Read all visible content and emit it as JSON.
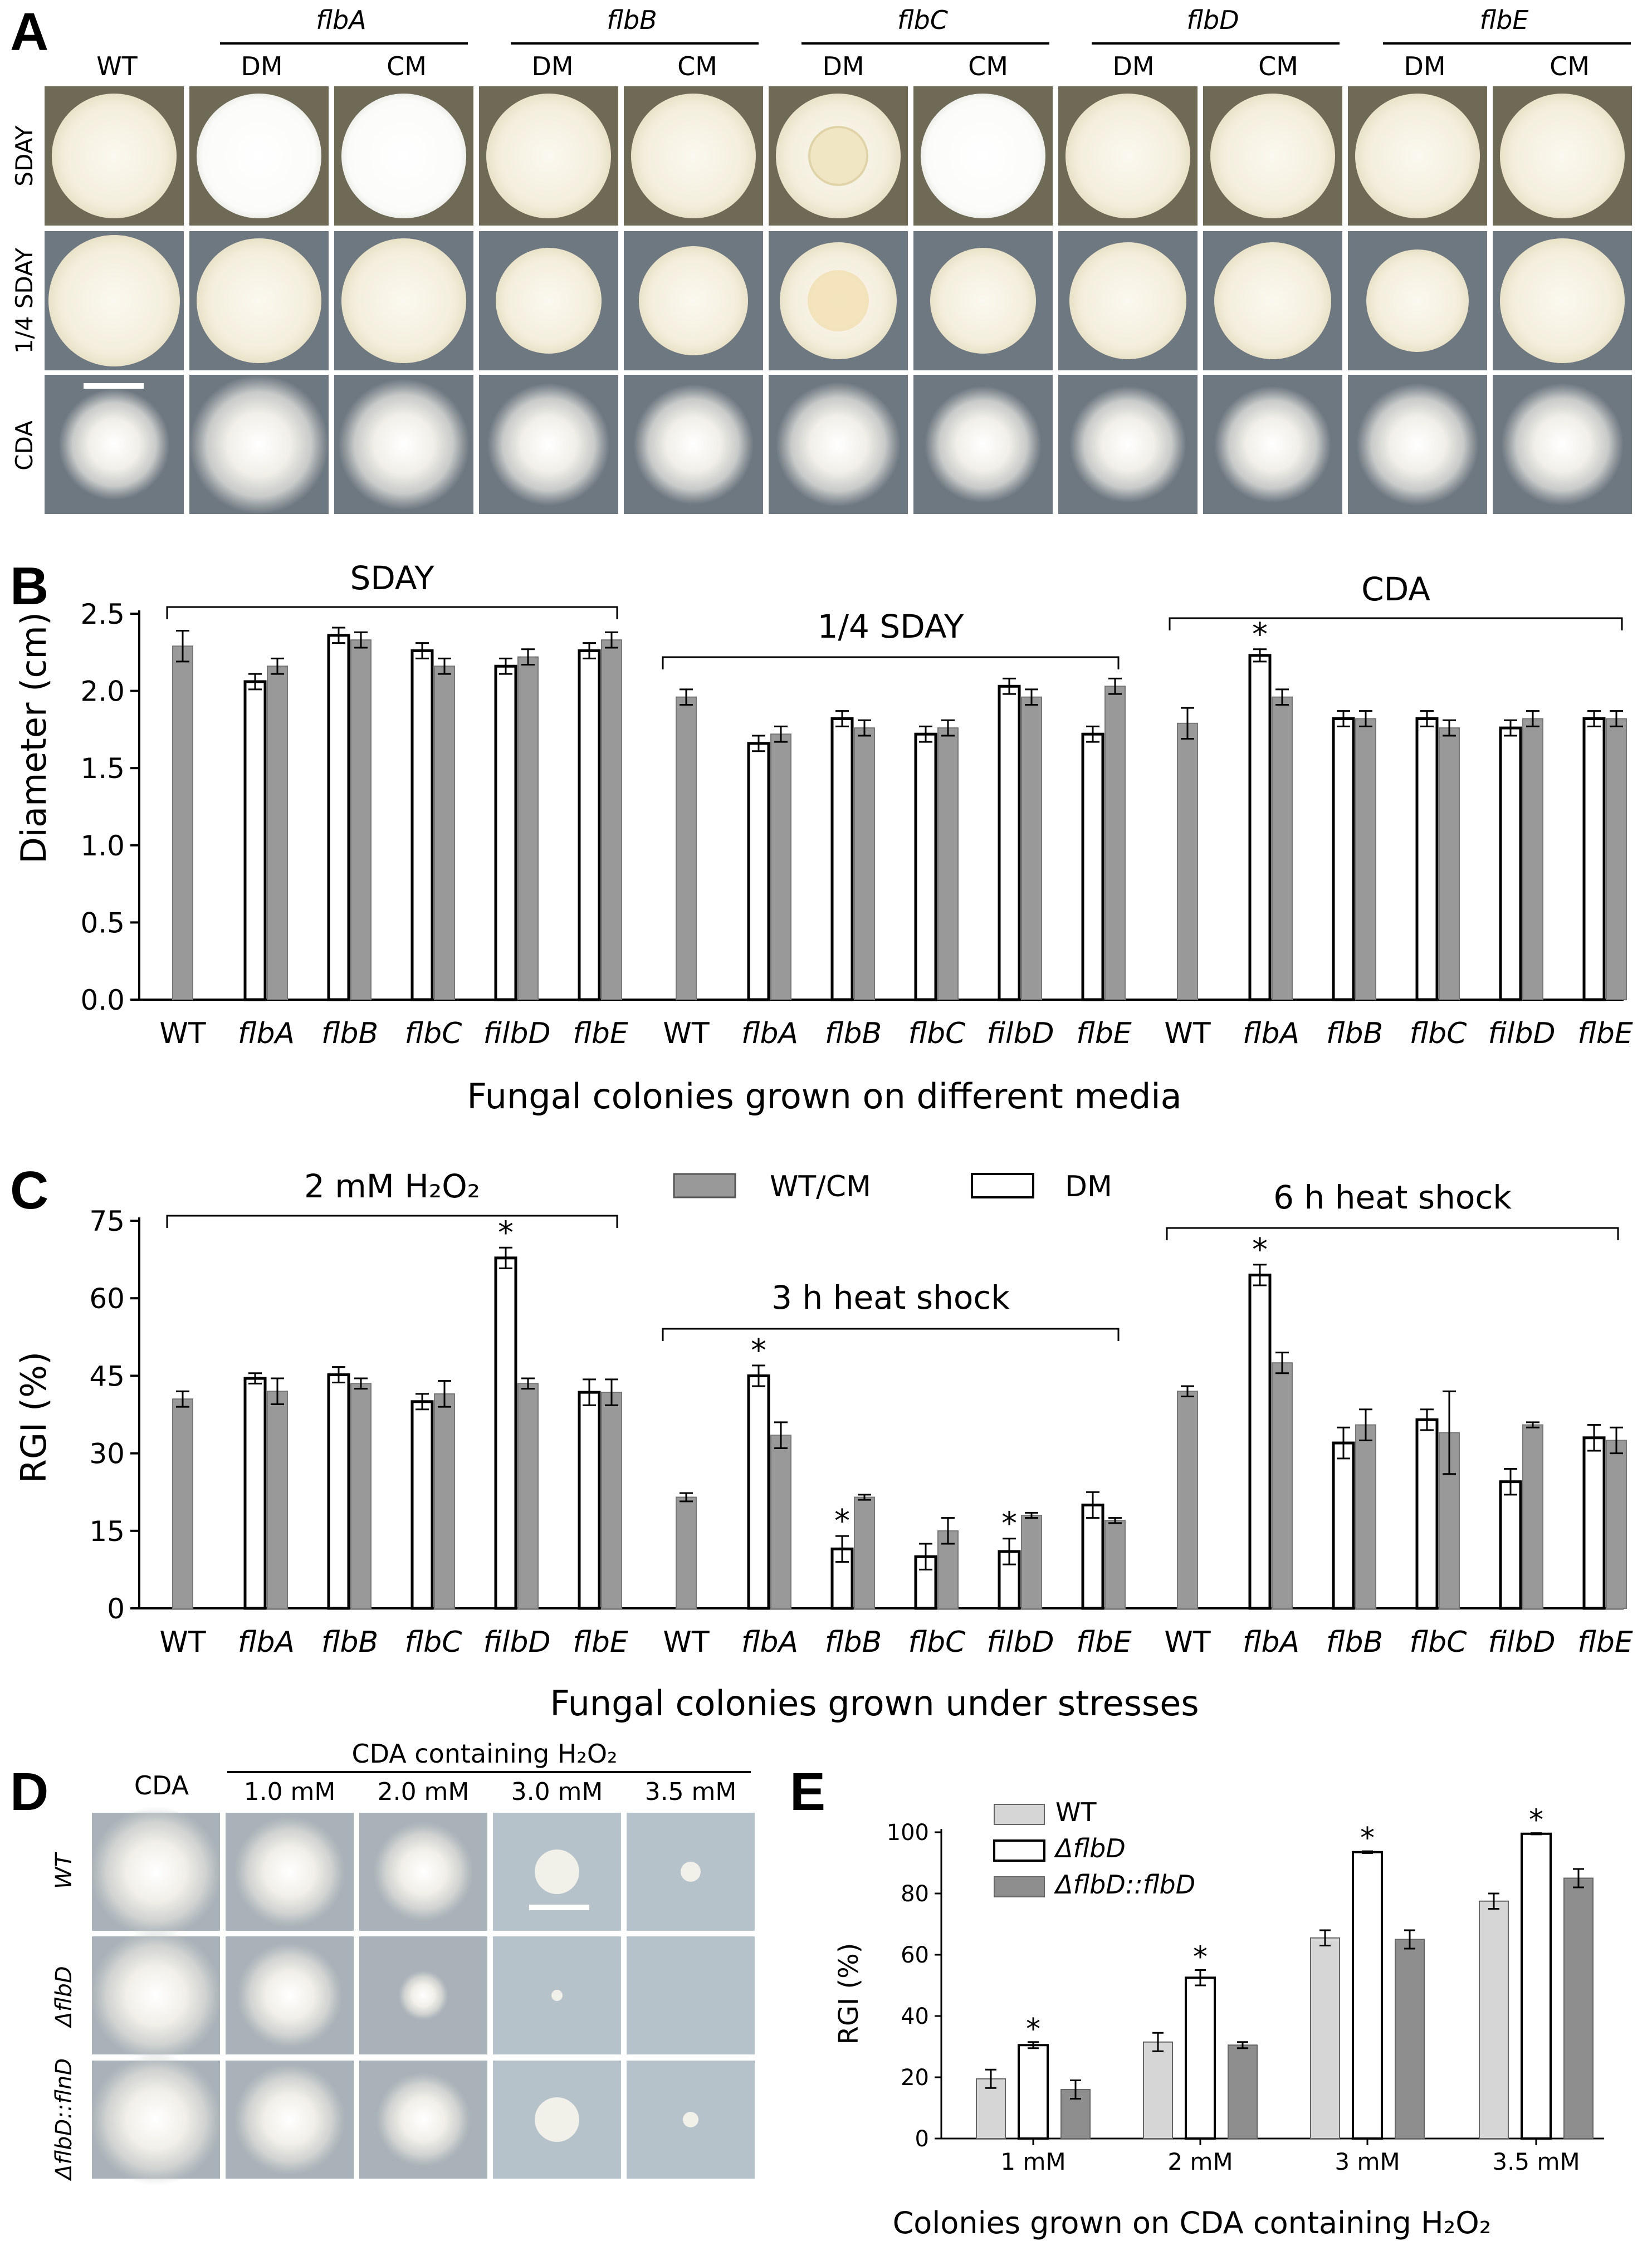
{
  "colors": {
    "gray_bar": "#999999",
    "light_bar": "#d6d6d6",
    "mid_bar": "#8e8e8e",
    "open_bar": "#ffffff",
    "plate_bg_dark": "#6f6a55",
    "plate_bg_gray": "#6e7880",
    "plate_bg_light": "#a7b1b9",
    "colony": "#f5f0e0"
  },
  "panel_a": {
    "letter": "A",
    "wt": "WT",
    "groups": [
      {
        "name": "flbA",
        "cols": [
          "DM",
          "CM"
        ]
      },
      {
        "name": "flbB",
        "cols": [
          "DM",
          "CM"
        ]
      },
      {
        "name": "flbC",
        "cols": [
          "DM",
          "CM"
        ]
      },
      {
        "name": "flbD",
        "cols": [
          "DM",
          "CM"
        ]
      },
      {
        "name": "flbE",
        "cols": [
          "DM",
          "CM"
        ]
      }
    ],
    "rows": [
      "SDAY",
      "1/4 SDAY",
      "CDA"
    ]
  },
  "chart_data": [
    {
      "id": "B",
      "type": "bar",
      "panel_letter": "B",
      "ylabel": "Diameter (cm)",
      "xlabel": "Fungal colonies grown on different media",
      "ylim": [
        0,
        2.5
      ],
      "yticks": [
        0.0,
        0.5,
        1.0,
        1.5,
        2.0,
        2.5
      ],
      "ytick_labels": [
        "0.0",
        "0.5",
        "1.0",
        "1.5",
        "2.0",
        "2.5"
      ],
      "groups": [
        {
          "title": "SDAY",
          "categories": [
            "WT",
            "flbA",
            "flbB",
            "flbC",
            "filbD",
            "flbE"
          ],
          "WT": {
            "value": 2.29,
            "err": 0.1
          },
          "DM": [
            {
              "value": 2.06,
              "err": 0.05
            },
            {
              "value": 2.36,
              "err": 0.05
            },
            {
              "value": 2.26,
              "err": 0.05
            },
            {
              "value": 2.16,
              "err": 0.05
            },
            {
              "value": 2.26,
              "err": 0.05
            }
          ],
          "CM": [
            {
              "value": 2.16,
              "err": 0.05
            },
            {
              "value": 2.33,
              "err": 0.05
            },
            {
              "value": 2.16,
              "err": 0.05
            },
            {
              "value": 2.22,
              "err": 0.05
            },
            {
              "value": 2.33,
              "err": 0.05
            }
          ],
          "stars": []
        },
        {
          "title": "1/4 SDAY",
          "categories": [
            "WT",
            "flbA",
            "flbB",
            "flbC",
            "filbD",
            "flbE"
          ],
          "WT": {
            "value": 1.96,
            "err": 0.05
          },
          "DM": [
            {
              "value": 1.66,
              "err": 0.05
            },
            {
              "value": 1.82,
              "err": 0.05
            },
            {
              "value": 1.72,
              "err": 0.05
            },
            {
              "value": 2.03,
              "err": 0.05
            },
            {
              "value": 1.72,
              "err": 0.05
            }
          ],
          "CM": [
            {
              "value": 1.72,
              "err": 0.05
            },
            {
              "value": 1.76,
              "err": 0.05
            },
            {
              "value": 1.76,
              "err": 0.05
            },
            {
              "value": 1.96,
              "err": 0.05
            },
            {
              "value": 2.03,
              "err": 0.05
            }
          ],
          "stars": []
        },
        {
          "title": "CDA",
          "categories": [
            "WT",
            "flbA",
            "flbB",
            "flbC",
            "filbD",
            "flbE"
          ],
          "WT": {
            "value": 1.79,
            "err": 0.1
          },
          "DM": [
            {
              "value": 2.23,
              "err": 0.04
            },
            {
              "value": 1.82,
              "err": 0.05
            },
            {
              "value": 1.82,
              "err": 0.05
            },
            {
              "value": 1.76,
              "err": 0.05
            },
            {
              "value": 1.82,
              "err": 0.05
            }
          ],
          "CM": [
            {
              "value": 1.96,
              "err": 0.05
            },
            {
              "value": 1.82,
              "err": 0.05
            },
            {
              "value": 1.76,
              "err": 0.05
            },
            {
              "value": 1.82,
              "err": 0.05
            },
            {
              "value": 1.82,
              "err": 0.05
            }
          ],
          "stars": [
            {
              "series": "DM",
              "index": 0
            }
          ]
        }
      ]
    },
    {
      "id": "C",
      "type": "bar",
      "panel_letter": "C",
      "ylabel": "RGI (%)",
      "xlabel": "Fungal colonies grown under stresses",
      "ylim": [
        0,
        75
      ],
      "yticks": [
        0,
        15,
        30,
        45,
        60,
        75
      ],
      "ytick_labels": [
        "0",
        "15",
        "30",
        "45",
        "60",
        "75"
      ],
      "legend": [
        {
          "label": "WT/CM",
          "style": "gray"
        },
        {
          "label": "DM",
          "style": "open"
        }
      ],
      "groups": [
        {
          "title": "2 mM H₂O₂",
          "categories": [
            "WT",
            "flbA",
            "flbB",
            "flbC",
            "filbD",
            "flbE"
          ],
          "WT": {
            "value": 40.5,
            "err": 1.5
          },
          "DM": [
            {
              "value": 44.5,
              "err": 1.0
            },
            {
              "value": 45.2,
              "err": 1.5
            },
            {
              "value": 40.0,
              "err": 1.5
            },
            {
              "value": 67.8,
              "err": 2.0
            },
            {
              "value": 41.8,
              "err": 2.5
            }
          ],
          "CM": [
            {
              "value": 42.0,
              "err": 2.5
            },
            {
              "value": 43.5,
              "err": 1.0
            },
            {
              "value": 41.5,
              "err": 2.5
            },
            {
              "value": 43.5,
              "err": 1.0
            },
            {
              "value": 41.8,
              "err": 2.5
            }
          ],
          "stars": [
            {
              "series": "DM",
              "index": 3
            }
          ]
        },
        {
          "title": "3 h heat shock",
          "categories": [
            "WT",
            "flbA",
            "flbB",
            "flbC",
            "filbD",
            "flbE"
          ],
          "WT": {
            "value": 21.5,
            "err": 0.8
          },
          "DM": [
            {
              "value": 45.0,
              "err": 2.0
            },
            {
              "value": 11.5,
              "err": 2.5
            },
            {
              "value": 10.0,
              "err": 2.5
            },
            {
              "value": 11.0,
              "err": 2.5
            },
            {
              "value": 20.0,
              "err": 2.5
            }
          ],
          "CM": [
            {
              "value": 33.5,
              "err": 2.5
            },
            {
              "value": 21.5,
              "err": 0.5
            },
            {
              "value": 15.0,
              "err": 2.5
            },
            {
              "value": 18.0,
              "err": 0.5
            },
            {
              "value": 17.0,
              "err": 0.5
            }
          ],
          "stars": [
            {
              "series": "DM",
              "index": 0
            },
            {
              "series": "DM",
              "index": 1
            },
            {
              "series": "DM",
              "index": 3
            }
          ]
        },
        {
          "title": "6 h heat shock",
          "categories": [
            "WT",
            "flbA",
            "flbB",
            "flbC",
            "filbD",
            "flbE"
          ],
          "WT": {
            "value": 42.0,
            "err": 1.0
          },
          "DM": [
            {
              "value": 64.5,
              "err": 2.0
            },
            {
              "value": 32.0,
              "err": 3.0
            },
            {
              "value": 36.5,
              "err": 2.0
            },
            {
              "value": 24.5,
              "err": 2.5
            },
            {
              "value": 33.0,
              "err": 2.5
            }
          ],
          "CM": [
            {
              "value": 47.5,
              "err": 2.0
            },
            {
              "value": 35.5,
              "err": 3.0
            },
            {
              "value": 34.0,
              "err": 8.0
            },
            {
              "value": 35.5,
              "err": 0.5
            },
            {
              "value": 32.5,
              "err": 2.5
            }
          ],
          "stars": [
            {
              "series": "DM",
              "index": 0
            }
          ]
        }
      ]
    },
    {
      "id": "E",
      "type": "bar",
      "panel_letter": "E",
      "ylabel": "RGI (%)",
      "xlabel": "Colonies grown on CDA containing H₂O₂",
      "ylim": [
        0,
        100
      ],
      "yticks": [
        0,
        20,
        40,
        60,
        80,
        100
      ],
      "ytick_labels": [
        "0",
        "20",
        "40",
        "60",
        "80",
        "100"
      ],
      "categories": [
        "1 mM",
        "2 mM",
        "3 mM",
        "3.5 mM"
      ],
      "series": [
        {
          "name": "WT",
          "style": "light",
          "values": [
            19.5,
            31.5,
            65.5,
            77.5
          ],
          "err": [
            3.0,
            3.0,
            2.5,
            2.5
          ]
        },
        {
          "name": "ΔflbD",
          "style": "open",
          "values": [
            30.5,
            52.5,
            93.5,
            99.5
          ],
          "err": [
            1.0,
            2.5,
            0.3,
            0.2
          ]
        },
        {
          "name": "ΔflbD::flbD",
          "style": "mid",
          "values": [
            16.0,
            30.5,
            65.0,
            85.0
          ],
          "err": [
            3.0,
            1.0,
            3.0,
            3.0
          ]
        }
      ],
      "stars": [
        {
          "series": 1,
          "index": 0
        },
        {
          "series": 1,
          "index": 1
        },
        {
          "series": 1,
          "index": 2
        },
        {
          "series": 1,
          "index": 3
        }
      ]
    }
  ],
  "panel_d": {
    "letter": "D",
    "cda": "CDA",
    "header": "CDA containing H₂O₂",
    "concs": [
      "1.0 mM",
      "2.0 mM",
      "3.0 mM",
      "3.5 mM"
    ],
    "rows": [
      "WT",
      "ΔflbD",
      "ΔflbD::flnD"
    ]
  }
}
